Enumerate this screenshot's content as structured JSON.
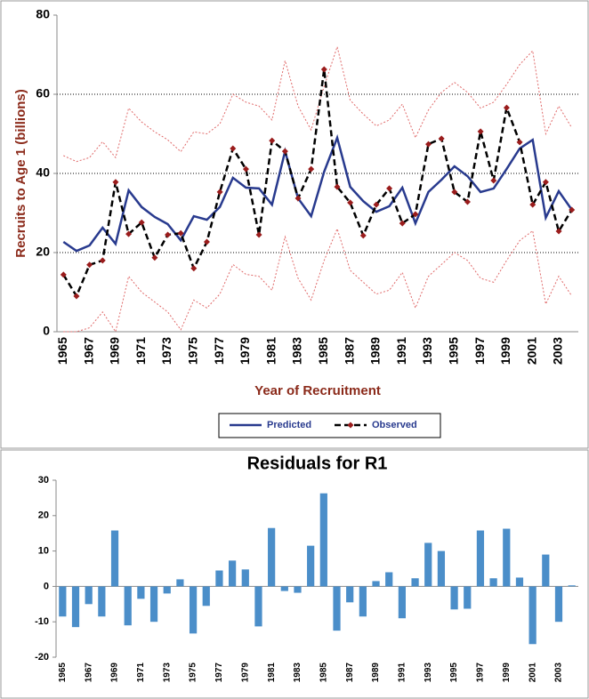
{
  "chart_data": [
    {
      "type": "line",
      "x_label": "Year of Recruitment",
      "y_label": "Recruits to Age 1 (billions)",
      "categories": [
        "1965",
        null,
        "1967",
        null,
        "1969",
        null,
        "1971",
        null,
        "1973",
        null,
        "1975",
        null,
        "1977",
        null,
        "1979",
        null,
        "1981",
        null,
        "1983",
        null,
        "1985",
        null,
        "1987",
        null,
        "1989",
        null,
        "1991",
        null,
        "1993",
        null,
        "1995",
        null,
        "1997",
        null,
        "1999",
        null,
        "2001",
        null,
        "2003",
        null
      ],
      "ylim": [
        0,
        80
      ],
      "yticks": [
        0,
        20,
        40,
        60,
        80
      ],
      "grid": true,
      "legend": "bottom",
      "series": [
        {
          "color": "#e06a6a",
          "style": "dotted",
          "values": [
            44.5,
            43,
            44,
            48,
            44,
            56.5,
            53,
            50.5,
            48.5,
            45.5,
            50.5,
            50,
            52.5,
            60,
            58,
            57,
            53.5,
            68.5,
            57,
            51,
            62,
            72,
            58.5,
            55,
            52,
            53.5,
            57.5,
            49,
            56,
            60.5,
            63,
            60.5,
            56.5,
            58,
            62.5,
            67.5,
            71,
            50,
            57,
            51.5
          ]
        },
        {
          "color": "#e06a6a",
          "style": "dotted",
          "values": [
            0,
            0,
            1,
            5,
            0,
            14,
            10,
            7.5,
            5,
            0.5,
            8,
            6,
            9.5,
            17,
            14.5,
            14,
            10.5,
            24,
            13.5,
            8,
            18,
            26,
            15.5,
            12.5,
            9.5,
            10.5,
            15,
            6,
            14,
            17,
            20,
            18,
            13.5,
            12.5,
            18,
            23,
            25.5,
            7,
            14,
            9
          ]
        },
        {
          "name": "Predicted",
          "color": "#283a8e",
          "style": "solid",
          "values": [
            22.7,
            20.4,
            21.8,
            26.3,
            22.2,
            35.7,
            31.5,
            29,
            27.2,
            23.1,
            29.2,
            28.3,
            31.5,
            38.9,
            36.4,
            36.2,
            32.1,
            45.6,
            33.7,
            29.2,
            40.4,
            49,
            36.6,
            33,
            30.3,
            31.7,
            36.4,
            27.4,
            35.3,
            38.4,
            41.8,
            39.3,
            35.3,
            36.2,
            41.1,
            46.3,
            48.5,
            28.8,
            35.5,
            30.8
          ]
        },
        {
          "name": "Observed",
          "color": "#000000",
          "marker_color": "#9a1c1c",
          "style": "dashed",
          "marker": "diamond",
          "values": [
            14.4,
            9,
            16.9,
            18,
            37.8,
            24.7,
            27.6,
            18.7,
            24.5,
            24.9,
            16,
            22.7,
            35.3,
            46.3,
            41.1,
            24.5,
            48.3,
            45.6,
            33.7,
            41.1,
            66.3,
            36.6,
            32.6,
            24.3,
            32.1,
            36.2,
            27.4,
            29.7,
            47.4,
            48.8,
            35.3,
            32.8,
            50.6,
            38.2,
            56.6,
            47.9,
            32.1,
            37.8,
            25.4,
            30.8
          ]
        }
      ]
    },
    {
      "type": "bar",
      "title": "Residuals for R1",
      "categories": [
        "1965",
        null,
        "1967",
        null,
        "1969",
        null,
        "1971",
        null,
        "1973",
        null,
        "1975",
        null,
        "1977",
        null,
        "1979",
        null,
        "1981",
        null,
        "1983",
        null,
        "1985",
        null,
        "1987",
        null,
        "1989",
        null,
        "1991",
        null,
        "1993",
        null,
        "1995",
        null,
        "1997",
        null,
        "1999",
        null,
        "2001",
        null,
        "2003",
        null
      ],
      "ylim": [
        -20,
        30
      ],
      "yticks": [
        -20,
        -10,
        0,
        10,
        20,
        30
      ],
      "grid": false,
      "color": "#4b8ec9",
      "values": [
        -8.5,
        -11.5,
        -5,
        -8.5,
        15.8,
        -11,
        -3.5,
        -10,
        -2,
        2,
        -13.3,
        -5.5,
        4.5,
        7.3,
        4.8,
        -11.3,
        16.5,
        -1.3,
        -1.8,
        11.5,
        26.3,
        -12.5,
        -4.5,
        -8.5,
        1.5,
        4,
        -9,
        2.3,
        12.3,
        10,
        -6.5,
        -6.3,
        15.8,
        2.3,
        16.3,
        2.5,
        -16.3,
        9,
        -10,
        0.3
      ]
    }
  ]
}
